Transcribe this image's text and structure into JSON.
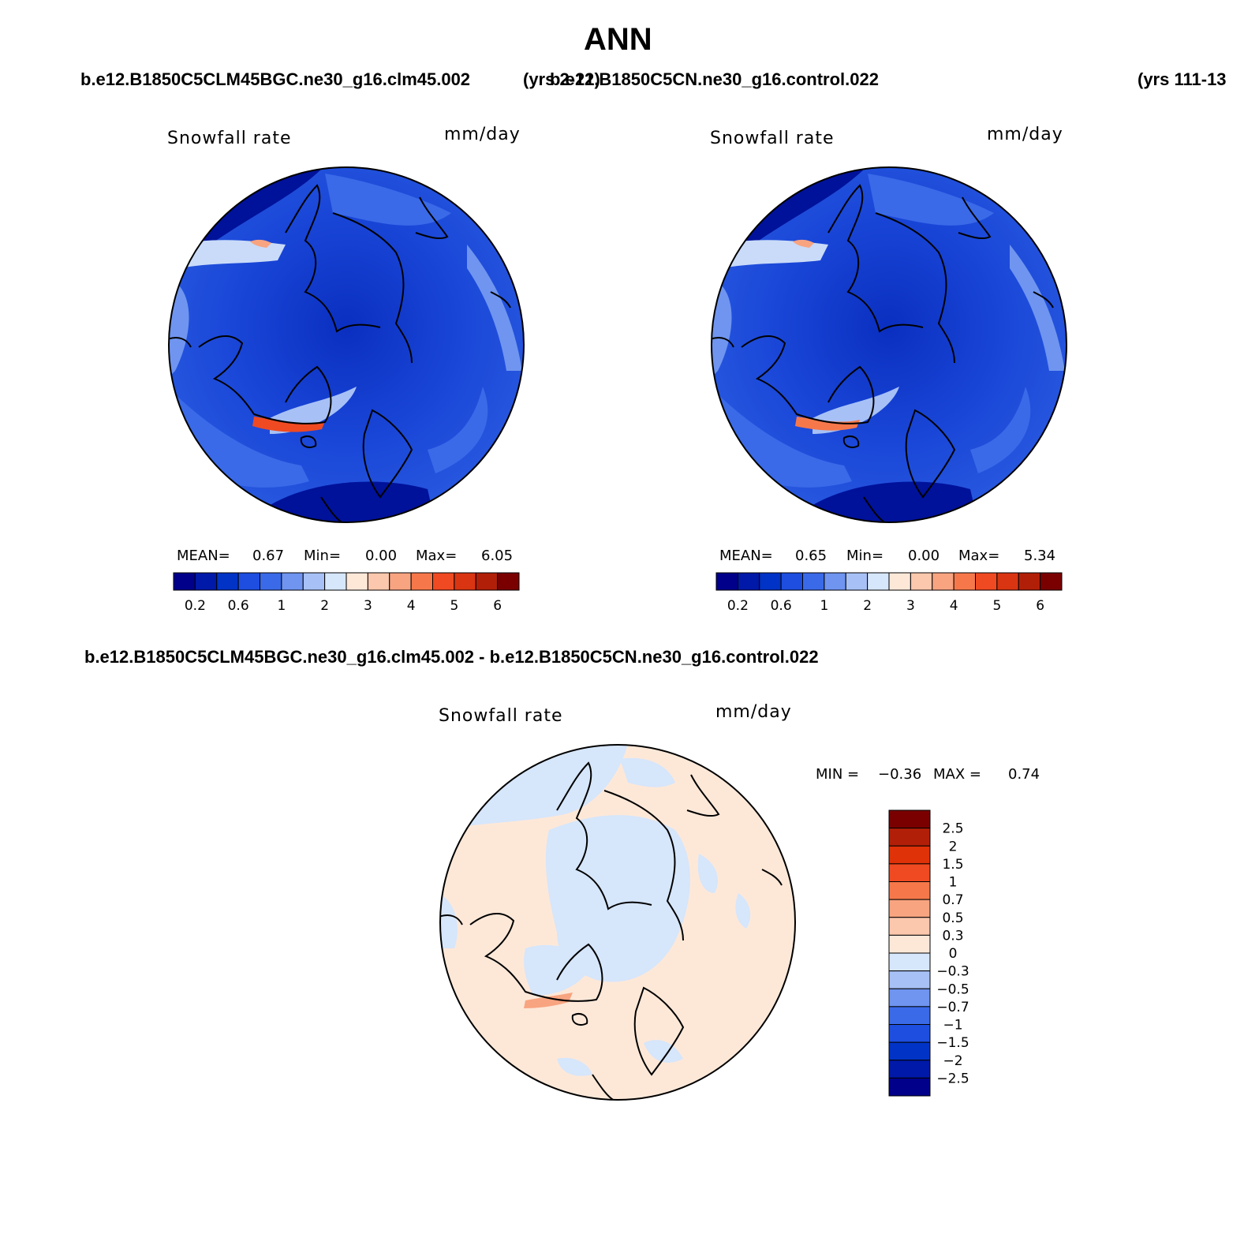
{
  "season": "ANN",
  "case_title_1": "b.e12.B1850C5CLM45BGC.ne30_g16.clm45.002",
  "case_years_1": "(yrs 2-21)",
  "case_title_2": "b.e12.B1850C5CN.ne30_g16.control.022",
  "case_years_2": "(yrs 111-13",
  "diff_title": "b.e12.B1850C5CLM45BGC.ne30_g16.clm45.002 - b.e12.B1850C5CN.ne30_g16.control.022",
  "variable": "Snowfall rate",
  "units": "mm/day",
  "panels": [
    {
      "mean_label": "MEAN=",
      "mean": "0.67",
      "min_label": "Min=",
      "min": "0.00",
      "max_label": "Max=",
      "max": "6.05"
    },
    {
      "mean_label": "MEAN=",
      "mean": "0.65",
      "min_label": "Min=",
      "min": "0.00",
      "max_label": "Max=",
      "max": "5.34"
    }
  ],
  "diff_stats": {
    "min_label": "MIN =",
    "min": "−0.36",
    "max_label": "MAX =",
    "max": "0.74"
  },
  "abs_colorbar": {
    "colors": [
      "#00008b",
      "#0019a8",
      "#0033c6",
      "#1d4ee0",
      "#3a6ae8",
      "#6f95f0",
      "#a7c1f6",
      "#d6e6fb",
      "#fde8d8",
      "#fbc7ad",
      "#f8a480",
      "#f6784a",
      "#f04a22",
      "#d93512",
      "#b21f08",
      "#7a0000"
    ],
    "ticks": [
      "0.2",
      "0.6",
      "1",
      "2",
      "3",
      "4",
      "5",
      "6"
    ]
  },
  "diff_colorbar": {
    "colors": [
      "#7a0000",
      "#b21f08",
      "#e03208",
      "#f04a22",
      "#f6784a",
      "#f8a480",
      "#fbc7ad",
      "#fde8d8",
      "#d6e6fb",
      "#a7c1f6",
      "#6f95f0",
      "#3a6ae8",
      "#1d4ee0",
      "#0033c6",
      "#0019a8",
      "#00008b"
    ],
    "ticks": [
      "2.5",
      "2",
      "1.5",
      "1",
      "0.7",
      "0.5",
      "0.3",
      "0",
      "−0.3",
      "−0.5",
      "−0.7",
      "−1",
      "−1.5",
      "−2",
      "−2.5"
    ]
  }
}
